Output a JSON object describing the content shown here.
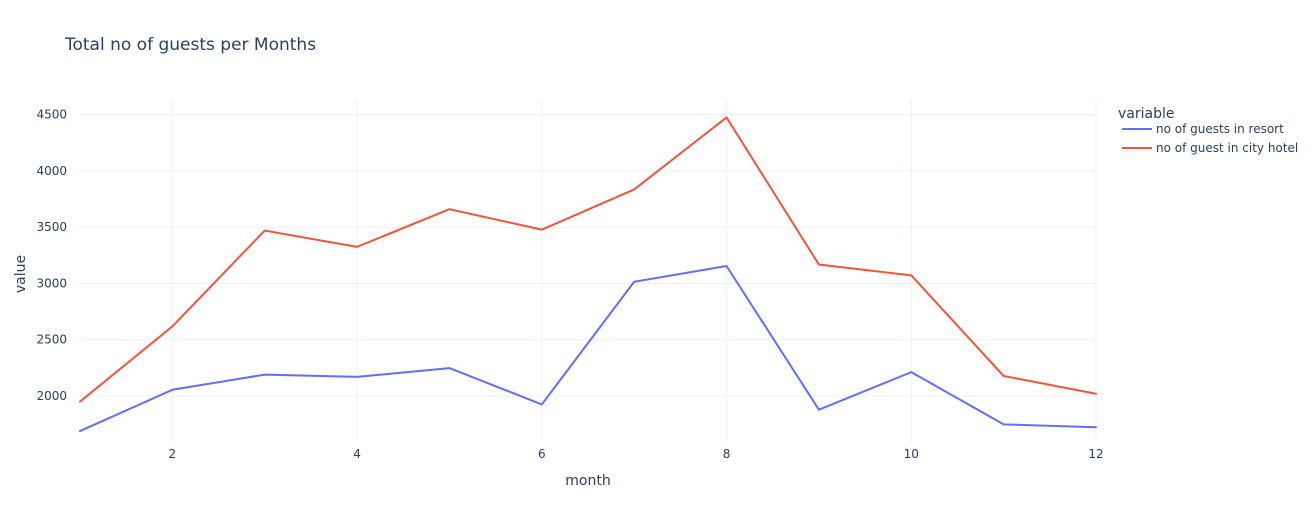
{
  "chart_data": {
    "type": "line",
    "title": "Total no of guests per Months",
    "xlabel": "month",
    "ylabel": "value",
    "x": [
      1,
      2,
      3,
      4,
      5,
      6,
      7,
      8,
      9,
      10,
      11,
      12
    ],
    "xlim": [
      1,
      12
    ],
    "ylim": [
      1600,
      4630
    ],
    "xticks": [
      2,
      4,
      6,
      8,
      10,
      12
    ],
    "yticks": [
      2000,
      2500,
      3000,
      3500,
      4000,
      4500
    ],
    "grid": true,
    "legend": {
      "title": "variable",
      "placement": "top-right"
    },
    "series": [
      {
        "name": "no of guests in resort",
        "color": "#636efa",
        "values": [
          1688,
          2055,
          2190,
          2170,
          2248,
          1925,
          3015,
          3155,
          1878,
          2212,
          1748,
          1722
        ]
      },
      {
        "name": "no of guest in city hotel",
        "color": "#ef553b",
        "values": [
          1950,
          2618,
          3470,
          3325,
          3660,
          3478,
          3835,
          4475,
          3168,
          3072,
          2178,
          2020
        ]
      }
    ]
  }
}
